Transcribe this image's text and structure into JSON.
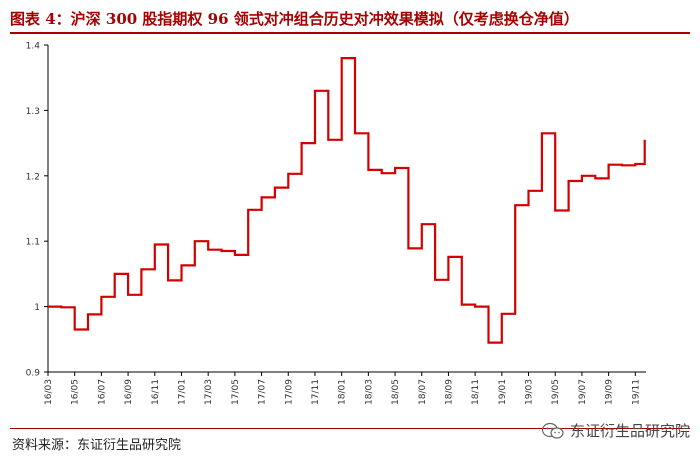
{
  "header": {
    "title": "图表 4：沪深 300 股指期权 96 领式对冲组合历史对冲效果模拟（仅考虑换仓净值）"
  },
  "footer": {
    "source": "资料来源：东证衍生品研究院",
    "watermark": "东证衍生品研究院",
    "watermark_icon": "wechat-icon"
  },
  "colors": {
    "accent": "#a80000",
    "line": "#d40000"
  },
  "chart_data": {
    "type": "line",
    "interpolation": "step",
    "title": "",
    "xlabel": "",
    "ylabel": "",
    "ylim": [
      0.9,
      1.4
    ],
    "yticks": [
      "0.9",
      "1",
      "1.1",
      "1.2",
      "1.3",
      "1.4"
    ],
    "xticks": [
      "16/03",
      "16/05",
      "16/07",
      "16/09",
      "16/11",
      "17/01",
      "17/03",
      "17/05",
      "17/07",
      "17/09",
      "17/11",
      "18/01",
      "18/03",
      "18/05",
      "18/07",
      "18/09",
      "18/11",
      "19/01",
      "19/03",
      "19/05",
      "19/07",
      "19/09",
      "19/11"
    ],
    "xlim": [
      0,
      22.4
    ],
    "grid": false,
    "legend": "none",
    "series": [
      {
        "x": [
          0,
          0.5,
          1.0,
          1.5,
          2.0,
          2.5,
          3.0,
          3.5,
          4.0,
          4.5,
          5.0,
          5.5,
          6.0,
          6.5,
          7.0,
          7.5,
          8.0,
          8.5,
          9.0,
          9.5,
          10.0,
          10.5,
          11.0,
          11.5,
          12.0,
          12.5,
          13.0,
          13.5,
          14.0,
          14.5,
          15.0,
          15.5,
          16.0,
          16.5,
          17.0,
          17.5,
          18.0,
          18.5,
          19.0,
          19.5,
          20.0,
          20.5,
          21.0,
          21.5,
          22.0,
          22.35
        ],
        "values": [
          1.0,
          0.999,
          0.965,
          0.988,
          1.015,
          1.05,
          1.018,
          1.057,
          1.095,
          1.04,
          1.063,
          1.1,
          1.087,
          1.085,
          1.079,
          1.148,
          1.167,
          1.182,
          1.203,
          1.25,
          1.33,
          1.255,
          1.38,
          1.265,
          1.209,
          1.204,
          1.212,
          1.089,
          1.126,
          1.041,
          1.076,
          1.003,
          1.0,
          0.945,
          0.989,
          1.155,
          1.177,
          1.265,
          1.147,
          1.192,
          1.2,
          1.196,
          1.217,
          1.216,
          1.218,
          1.255
        ]
      }
    ]
  }
}
